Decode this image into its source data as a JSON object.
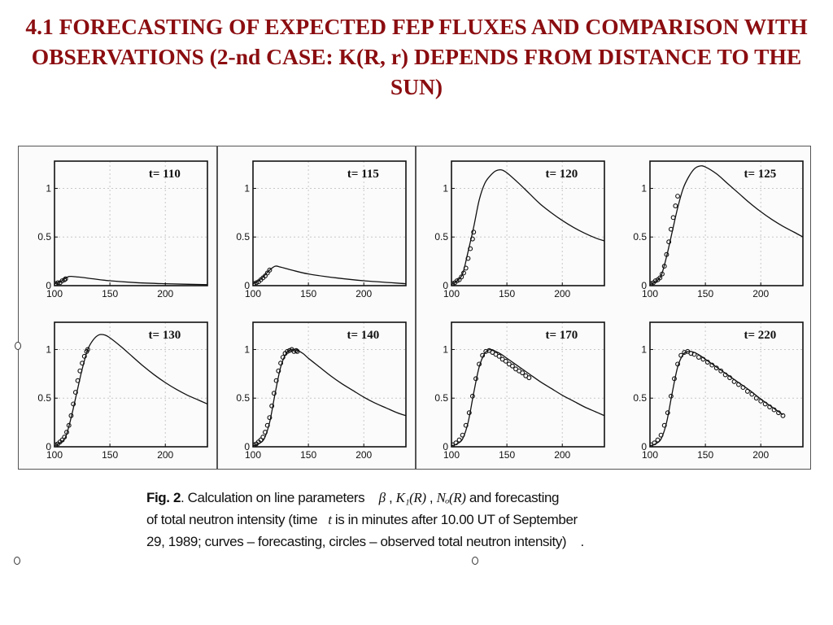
{
  "slide": {
    "title": "4.1 FORECASTING OF EXPECTED FEP FLUXES AND COMPARISON WITH OBSERVATIONS (2-nd CASE: K(R, r) DEPENDS FROM DISTANCE TO THE SUN)",
    "title_color": "#8b0d10"
  },
  "caption": {
    "fig_label": "Fig. 2",
    "part1": ". Calculation on line parameters",
    "sym_beta": "β",
    "sym_k1": "K₁(R)",
    "sym_no": "Nₒ(R)",
    "part2": "and forecasting",
    "line2a": "of total neutron intensity (time",
    "sym_t": "t",
    "line2b": "is in minutes after 10.00 UT of September",
    "line3": "29, 1989; curves – forecasting, circles – observed total neutron intensity)",
    "line3_end": "."
  },
  "chart_data": [
    {
      "type": "line",
      "title": "t= 110",
      "xticks": [
        "100",
        "150",
        "200"
      ],
      "yticks": [
        "0",
        "0.5",
        "1"
      ],
      "xlim": [
        100,
        238
      ],
      "ylim": [
        0,
        1.28
      ],
      "series": [
        {
          "values": "forecast curve",
          "x": [
            100,
            105,
            108,
            112,
            115,
            120,
            125,
            135,
            150,
            175,
            200,
            238
          ],
          "y": [
            0.02,
            0.04,
            0.06,
            0.09,
            0.095,
            0.09,
            0.085,
            0.07,
            0.05,
            0.03,
            0.02,
            0.01
          ]
        },
        {
          "values": "observed",
          "x": [
            101,
            103,
            105,
            107,
            109,
            110
          ],
          "y": [
            0.02,
            0.03,
            0.03,
            0.05,
            0.06,
            0.07
          ]
        }
      ]
    },
    {
      "type": "line",
      "title": "t= 115",
      "xticks": [
        "100",
        "150",
        "200"
      ],
      "yticks": [
        "0",
        "0.5",
        "1"
      ],
      "xlim": [
        100,
        238
      ],
      "ylim": [
        0,
        1.28
      ],
      "series": [
        {
          "values": "forecast curve",
          "x": [
            100,
            105,
            110,
            115,
            120,
            125,
            135,
            150,
            175,
            200,
            238
          ],
          "y": [
            0.02,
            0.05,
            0.1,
            0.16,
            0.2,
            0.19,
            0.16,
            0.12,
            0.08,
            0.05,
            0.02
          ]
        },
        {
          "values": "observed",
          "x": [
            101,
            103,
            105,
            107,
            109,
            111,
            113,
            115
          ],
          "y": [
            0.02,
            0.03,
            0.04,
            0.06,
            0.08,
            0.1,
            0.13,
            0.16
          ]
        }
      ]
    },
    {
      "type": "line",
      "title": "t= 120",
      "xticks": [
        "100",
        "150",
        "200"
      ],
      "yticks": [
        "0",
        "0.5",
        "1"
      ],
      "xlim": [
        100,
        238
      ],
      "ylim": [
        0,
        1.28
      ],
      "series": [
        {
          "values": "forecast curve",
          "x": [
            100,
            105,
            110,
            115,
            120,
            125,
            130,
            135,
            140,
            145,
            150,
            160,
            170,
            180,
            190,
            200,
            210,
            220,
            230,
            238
          ],
          "y": [
            0.01,
            0.05,
            0.12,
            0.35,
            0.6,
            0.88,
            1.05,
            1.13,
            1.18,
            1.19,
            1.16,
            1.06,
            0.95,
            0.84,
            0.75,
            0.67,
            0.6,
            0.54,
            0.49,
            0.46
          ]
        },
        {
          "values": "observed",
          "x": [
            101,
            103,
            105,
            107,
            109,
            111,
            113,
            115,
            117,
            119,
            120
          ],
          "y": [
            0.02,
            0.03,
            0.05,
            0.06,
            0.09,
            0.13,
            0.18,
            0.28,
            0.38,
            0.48,
            0.55
          ]
        }
      ]
    },
    {
      "type": "line",
      "title": "t= 125",
      "xticks": [
        "100",
        "150",
        "200"
      ],
      "yticks": [
        "0",
        "0.5",
        "1"
      ],
      "xlim": [
        100,
        238
      ],
      "ylim": [
        0,
        1.28
      ],
      "series": [
        {
          "values": "forecast curve",
          "x": [
            100,
            105,
            110,
            115,
            120,
            125,
            130,
            135,
            140,
            145,
            150,
            160,
            170,
            180,
            190,
            200,
            210,
            220,
            230,
            238
          ],
          "y": [
            0.01,
            0.04,
            0.1,
            0.3,
            0.55,
            0.8,
            1.0,
            1.12,
            1.2,
            1.23,
            1.22,
            1.15,
            1.05,
            0.95,
            0.85,
            0.76,
            0.68,
            0.61,
            0.55,
            0.5
          ]
        },
        {
          "values": "observed",
          "x": [
            101,
            103,
            105,
            107,
            109,
            111,
            113,
            115,
            117,
            119,
            121,
            123,
            125
          ],
          "y": [
            0.02,
            0.03,
            0.05,
            0.06,
            0.08,
            0.12,
            0.2,
            0.32,
            0.45,
            0.58,
            0.7,
            0.82,
            0.92
          ]
        }
      ]
    },
    {
      "type": "line",
      "title": "t= 130",
      "xticks": [
        "100",
        "150",
        "200"
      ],
      "yticks": [
        "0",
        "0.5",
        "1"
      ],
      "xlim": [
        100,
        238
      ],
      "ylim": [
        0,
        1.28
      ],
      "series": [
        {
          "values": "forecast curve",
          "x": [
            100,
            105,
            110,
            115,
            120,
            125,
            130,
            135,
            140,
            145,
            150,
            160,
            170,
            180,
            190,
            200,
            210,
            220,
            230,
            238
          ],
          "y": [
            0.01,
            0.04,
            0.1,
            0.3,
            0.55,
            0.8,
            1.0,
            1.1,
            1.15,
            1.15,
            1.12,
            1.03,
            0.93,
            0.83,
            0.74,
            0.66,
            0.59,
            0.53,
            0.48,
            0.44
          ]
        },
        {
          "values": "observed",
          "x": [
            101,
            103,
            105,
            107,
            109,
            111,
            113,
            115,
            117,
            119,
            121,
            123,
            125,
            127,
            129,
            130
          ],
          "y": [
            0.02,
            0.03,
            0.05,
            0.07,
            0.1,
            0.15,
            0.22,
            0.32,
            0.44,
            0.56,
            0.68,
            0.78,
            0.86,
            0.93,
            0.98,
            1.0
          ]
        }
      ]
    },
    {
      "type": "line",
      "title": "t= 140",
      "xticks": [
        "100",
        "150",
        "200"
      ],
      "yticks": [
        "0",
        "0.5",
        "1"
      ],
      "xlim": [
        100,
        238
      ],
      "ylim": [
        0,
        1.28
      ],
      "series": [
        {
          "values": "forecast curve",
          "x": [
            100,
            105,
            110,
            115,
            120,
            125,
            130,
            135,
            140,
            145,
            150,
            160,
            170,
            180,
            190,
            200,
            210,
            220,
            230,
            238
          ],
          "y": [
            0.01,
            0.03,
            0.08,
            0.25,
            0.55,
            0.82,
            0.96,
            1.0,
            0.99,
            0.96,
            0.91,
            0.82,
            0.73,
            0.65,
            0.58,
            0.51,
            0.45,
            0.4,
            0.35,
            0.32
          ]
        },
        {
          "values": "observed",
          "x": [
            101,
            103,
            105,
            107,
            109,
            111,
            113,
            115,
            117,
            119,
            121,
            123,
            125,
            127,
            129,
            131,
            133,
            135,
            137,
            139,
            140
          ],
          "y": [
            0.02,
            0.03,
            0.05,
            0.07,
            0.1,
            0.15,
            0.22,
            0.3,
            0.42,
            0.55,
            0.68,
            0.78,
            0.86,
            0.92,
            0.96,
            0.98,
            0.99,
            1.0,
            0.98,
            0.99,
            0.98
          ]
        }
      ]
    },
    {
      "type": "line",
      "title": "t= 170",
      "xticks": [
        "100",
        "150",
        "200"
      ],
      "yticks": [
        "0",
        "0.5",
        "1"
      ],
      "xlim": [
        100,
        238
      ],
      "ylim": [
        0,
        1.28
      ],
      "series": [
        {
          "values": "forecast curve",
          "x": [
            100,
            105,
            110,
            115,
            120,
            125,
            130,
            135,
            140,
            145,
            150,
            160,
            170,
            180,
            190,
            200,
            210,
            220,
            230,
            238
          ],
          "y": [
            0.01,
            0.03,
            0.08,
            0.25,
            0.55,
            0.82,
            0.96,
            1.0,
            0.98,
            0.95,
            0.91,
            0.83,
            0.75,
            0.67,
            0.6,
            0.53,
            0.47,
            0.41,
            0.36,
            0.32
          ]
        },
        {
          "values": "observed",
          "x": [
            101,
            104,
            107,
            110,
            113,
            116,
            119,
            122,
            125,
            128,
            131,
            134,
            137,
            140,
            143,
            146,
            149,
            152,
            155,
            158,
            161,
            164,
            167,
            170
          ],
          "y": [
            0.02,
            0.04,
            0.07,
            0.12,
            0.22,
            0.35,
            0.52,
            0.7,
            0.85,
            0.94,
            0.98,
            0.99,
            0.97,
            0.95,
            0.93,
            0.9,
            0.88,
            0.85,
            0.83,
            0.8,
            0.78,
            0.76,
            0.73,
            0.71
          ]
        }
      ]
    },
    {
      "type": "line",
      "title": "t= 220",
      "xticks": [
        "100",
        "150",
        "200"
      ],
      "yticks": [
        "0",
        "0.5",
        "1"
      ],
      "xlim": [
        100,
        238
      ],
      "ylim": [
        0,
        1.28
      ],
      "series": [
        {
          "values": "forecast curve",
          "x": [
            100,
            105,
            110,
            115,
            120,
            125,
            130,
            135,
            140,
            145,
            150,
            160,
            170,
            180,
            190,
            200,
            210,
            220
          ],
          "y": [
            0.01,
            0.03,
            0.08,
            0.25,
            0.55,
            0.82,
            0.95,
            0.98,
            0.97,
            0.94,
            0.9,
            0.82,
            0.74,
            0.66,
            0.58,
            0.49,
            0.41,
            0.33
          ]
        },
        {
          "values": "observed",
          "x": [
            101,
            104,
            107,
            110,
            113,
            116,
            119,
            122,
            125,
            128,
            131,
            134,
            137,
            140,
            144,
            148,
            152,
            156,
            160,
            164,
            168,
            172,
            176,
            180,
            184,
            188,
            192,
            196,
            200,
            204,
            208,
            212,
            216,
            220
          ],
          "y": [
            0.02,
            0.04,
            0.07,
            0.12,
            0.22,
            0.35,
            0.52,
            0.7,
            0.85,
            0.94,
            0.97,
            0.98,
            0.96,
            0.95,
            0.92,
            0.9,
            0.87,
            0.84,
            0.81,
            0.78,
            0.74,
            0.71,
            0.67,
            0.64,
            0.61,
            0.57,
            0.54,
            0.5,
            0.47,
            0.44,
            0.41,
            0.38,
            0.35,
            0.32
          ]
        }
      ]
    }
  ]
}
